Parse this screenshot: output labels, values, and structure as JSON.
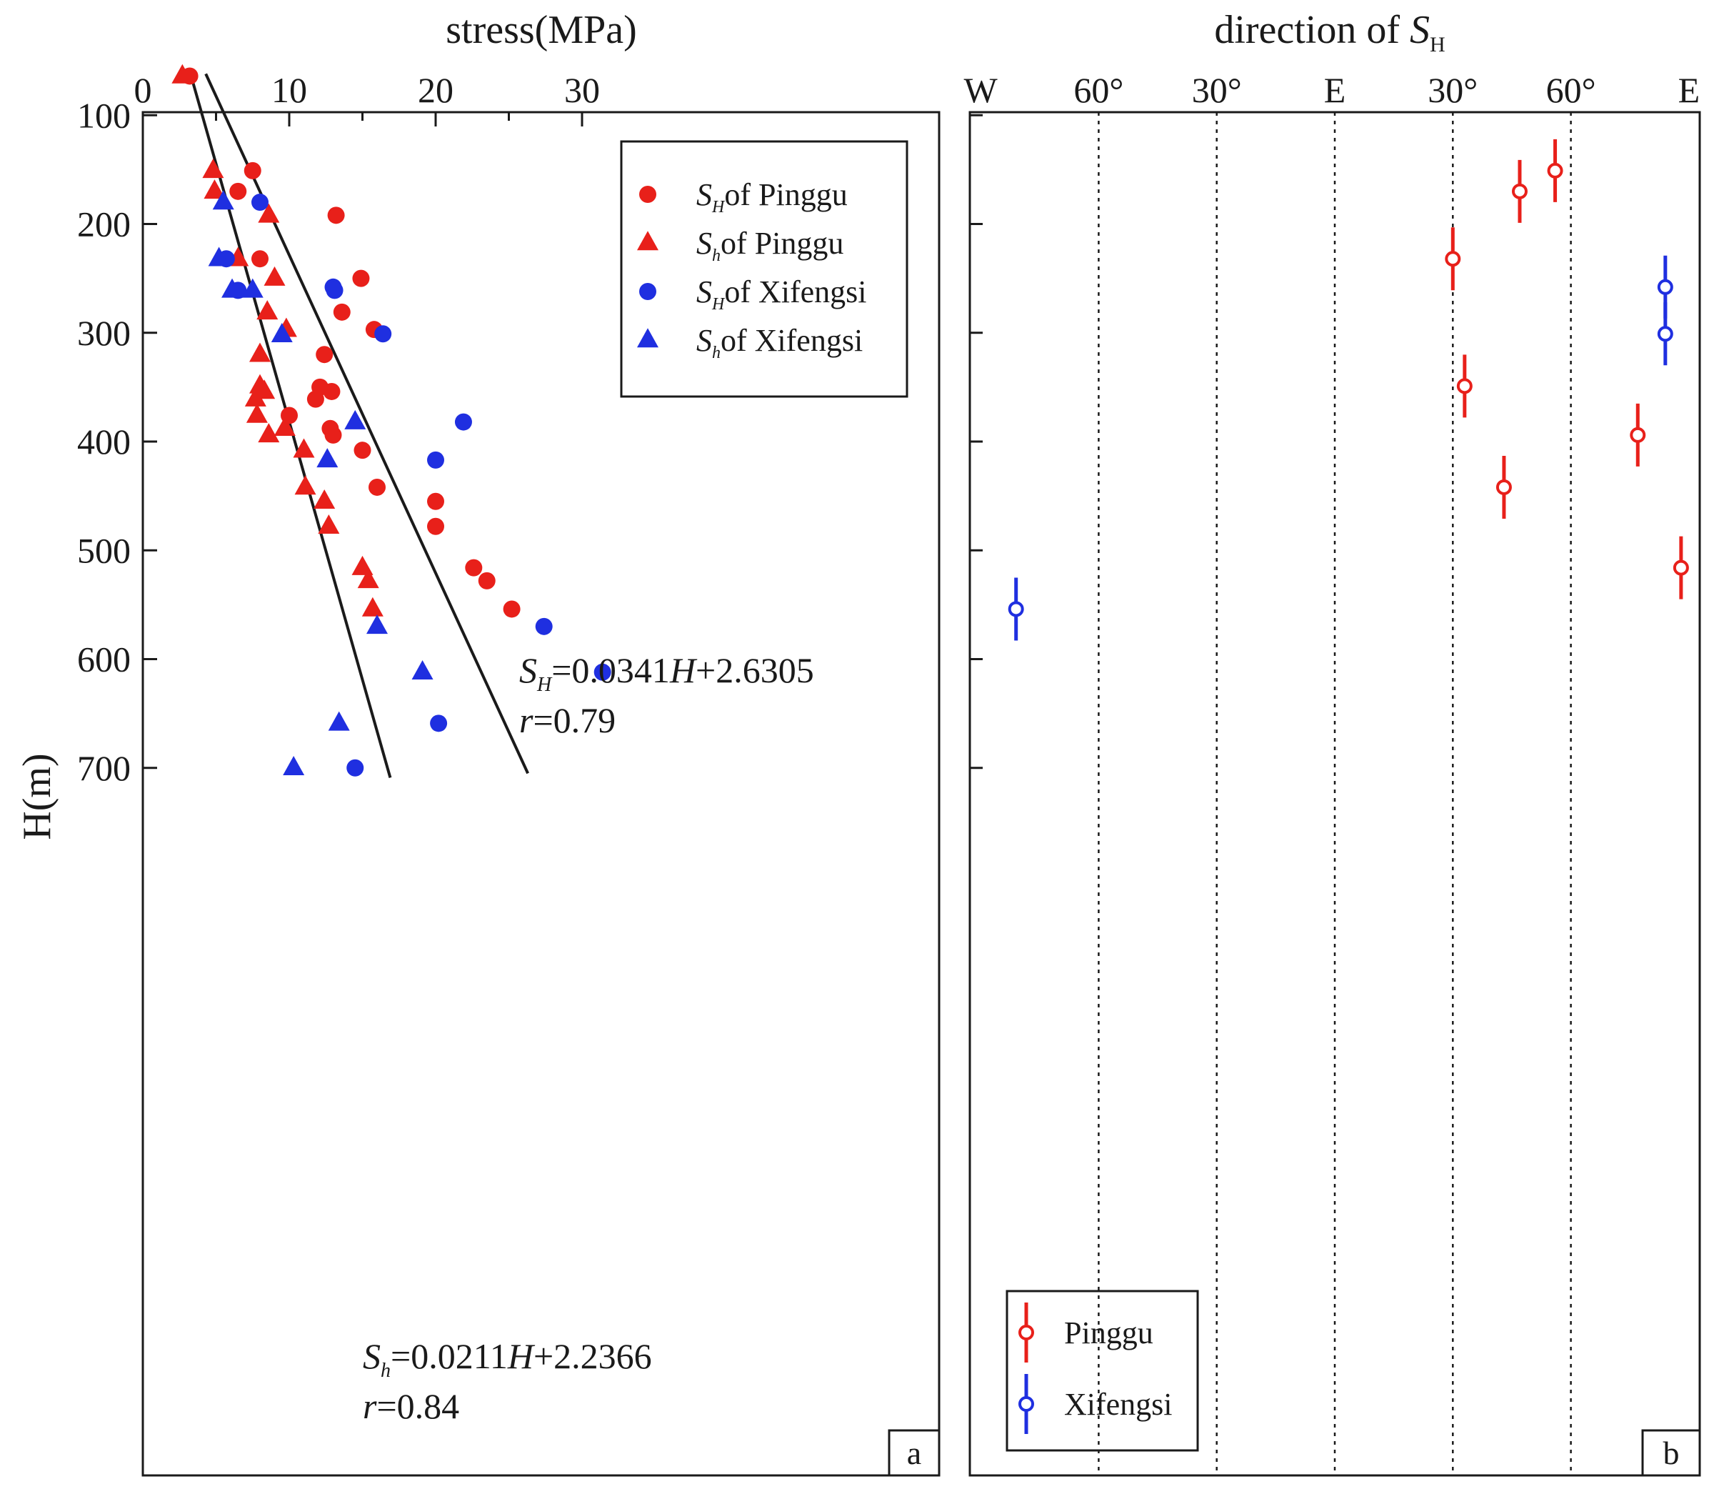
{
  "chart_data": [
    {
      "type": "scatter",
      "panel_label": "a",
      "xlabel": "stress(MPa)",
      "ylabel": "H(m)",
      "xlim": [
        0,
        35
      ],
      "ylim": [
        820,
        0
      ],
      "x_ticks": [
        "0",
        "10",
        "20",
        "30"
      ],
      "x_tick_values": [
        0,
        10,
        20,
        30
      ],
      "x_minor_tick_values": [
        5,
        15,
        25
      ],
      "y_ticks": [
        "100",
        "200",
        "300",
        "400",
        "500",
        "600",
        "700"
      ],
      "y_tick_values": [
        100,
        200,
        300,
        400,
        500,
        600,
        700
      ],
      "legend": [
        {
          "sym": "S",
          "sub": "H",
          "rest": "of Pinggu",
          "marker": "circle",
          "color": "#e8201a"
        },
        {
          "sym": "S",
          "sub": "h",
          "rest": "of Pinggu",
          "marker": "triangle",
          "color": "#e8201a"
        },
        {
          "sym": "S",
          "sub": "H",
          "rest": "of Xifengsi",
          "marker": "circle",
          "color": "#1f2fe0"
        },
        {
          "sym": "S",
          "sub": "h",
          "rest": "of Xifengsi",
          "marker": "triangle",
          "color": "#1f2fe0"
        }
      ],
      "legend_position": "top-right",
      "series": [
        {
          "name": "SH of Pinggu",
          "marker": "circle",
          "color": "#e8201a",
          "points": [
            [
              3.2,
              64
            ],
            [
              7.5,
              151
            ],
            [
              6.5,
              170
            ],
            [
              13.2,
              192
            ],
            [
              8.0,
              232
            ],
            [
              14.9,
              250
            ],
            [
              13.6,
              281
            ],
            [
              15.8,
              297
            ],
            [
              12.4,
              320
            ],
            [
              12.1,
              350
            ],
            [
              12.9,
              354
            ],
            [
              11.8,
              361
            ],
            [
              10.0,
              376
            ],
            [
              12.8,
              388
            ],
            [
              13.0,
              394
            ],
            [
              15.0,
              408
            ],
            [
              16.0,
              442
            ],
            [
              20.0,
              455
            ],
            [
              20.0,
              478
            ],
            [
              22.6,
              516
            ],
            [
              23.5,
              528
            ],
            [
              25.2,
              554
            ]
          ]
        },
        {
          "name": "Sh of Pinggu",
          "marker": "triangle",
          "color": "#e8201a",
          "points": [
            [
              2.7,
              64
            ],
            [
              4.8,
              151
            ],
            [
              4.9,
              170
            ],
            [
              8.6,
              192
            ],
            [
              6.5,
              232
            ],
            [
              9.0,
              250
            ],
            [
              8.5,
              281
            ],
            [
              9.8,
              297
            ],
            [
              8.0,
              320
            ],
            [
              8.0,
              349
            ],
            [
              8.3,
              354
            ],
            [
              7.7,
              361
            ],
            [
              7.8,
              376
            ],
            [
              8.6,
              394
            ],
            [
              9.7,
              388
            ],
            [
              11.0,
              408
            ],
            [
              11.1,
              442
            ],
            [
              12.4,
              455
            ],
            [
              12.7,
              478
            ],
            [
              15.0,
              516
            ],
            [
              15.4,
              528
            ],
            [
              15.7,
              554
            ]
          ]
        },
        {
          "name": "SH of Xifengsi",
          "marker": "circle",
          "color": "#1f2fe0",
          "points": [
            [
              8.0,
              180
            ],
            [
              5.7,
              232
            ],
            [
              6.5,
              261
            ],
            [
              13.0,
              258
            ],
            [
              13.1,
              261
            ],
            [
              16.4,
              301
            ],
            [
              21.9,
              382
            ],
            [
              20.0,
              417
            ],
            [
              27.4,
              570
            ],
            [
              31.4,
              612
            ],
            [
              20.2,
              659
            ],
            [
              14.5,
              700
            ]
          ]
        },
        {
          "name": "Sh of Xifengsi",
          "marker": "triangle",
          "color": "#1f2fe0",
          "points": [
            [
              5.5,
              180
            ],
            [
              5.2,
              232
            ],
            [
              6.1,
              261
            ],
            [
              7.5,
              261
            ],
            [
              9.5,
              302
            ],
            [
              14.5,
              382
            ],
            [
              12.6,
              417
            ],
            [
              16.0,
              570
            ],
            [
              19.1,
              612
            ],
            [
              13.4,
              659
            ],
            [
              10.3,
              700
            ]
          ]
        }
      ],
      "fit_lines": [
        {
          "name": "SH",
          "x1": 4.3,
          "y1": 62,
          "x2": 26.3,
          "y2": 705,
          "label_sym": "S",
          "label_sub": "H",
          "label_rest": "=0.0341",
          "label_var": "H",
          "label_end": "+2.6305",
          "r_text": "=0.79",
          "r_var": "r"
        },
        {
          "name": "Sh",
          "x1": 3.3,
          "y1": 64,
          "x2": 16.9,
          "y2": 709,
          "label_sym": "S",
          "label_sub": "h",
          "label_rest": "=0.0211",
          "label_var": "H",
          "label_end": "+2.2366",
          "r_text": "=0.84",
          "r_var": "r"
        }
      ]
    },
    {
      "type": "scatter",
      "panel_label": "b",
      "xlabel_text": "direction of ",
      "xlabel_sym": "S",
      "xlabel_sub": "H",
      "ylim": [
        820,
        0
      ],
      "x_ticks": [
        "W",
        "60°",
        "30°",
        "E",
        "30°",
        "60°",
        "E"
      ],
      "x_tick_values": [
        -90,
        -60,
        -30,
        0,
        30,
        60,
        90
      ],
      "dotted_grid_at": [
        -60,
        -30,
        0,
        30,
        60
      ],
      "y_tick_values": [
        100,
        200,
        300,
        400,
        500,
        600,
        700
      ],
      "legend": [
        {
          "label": "Pinggu",
          "color": "#e8201a"
        },
        {
          "label": "Xifengsi",
          "color": "#1f2fe0"
        }
      ],
      "legend_position": "bottom-left",
      "series": [
        {
          "name": "Pinggu",
          "color": "#e8201a",
          "points": [
            [
              56,
              151,
              18
            ],
            [
              47,
              170,
              18
            ],
            [
              30,
              232,
              18
            ],
            [
              33,
              349,
              18
            ],
            [
              77,
              394,
              18
            ],
            [
              43,
              442,
              18
            ],
            [
              88,
              516,
              18
            ]
          ]
        },
        {
          "name": "Xifengsi",
          "color": "#1f2fe0",
          "points": [
            [
              84,
              258,
              18
            ],
            [
              84,
              301,
              18
            ],
            [
              -81,
              554,
              18
            ]
          ]
        }
      ]
    }
  ]
}
